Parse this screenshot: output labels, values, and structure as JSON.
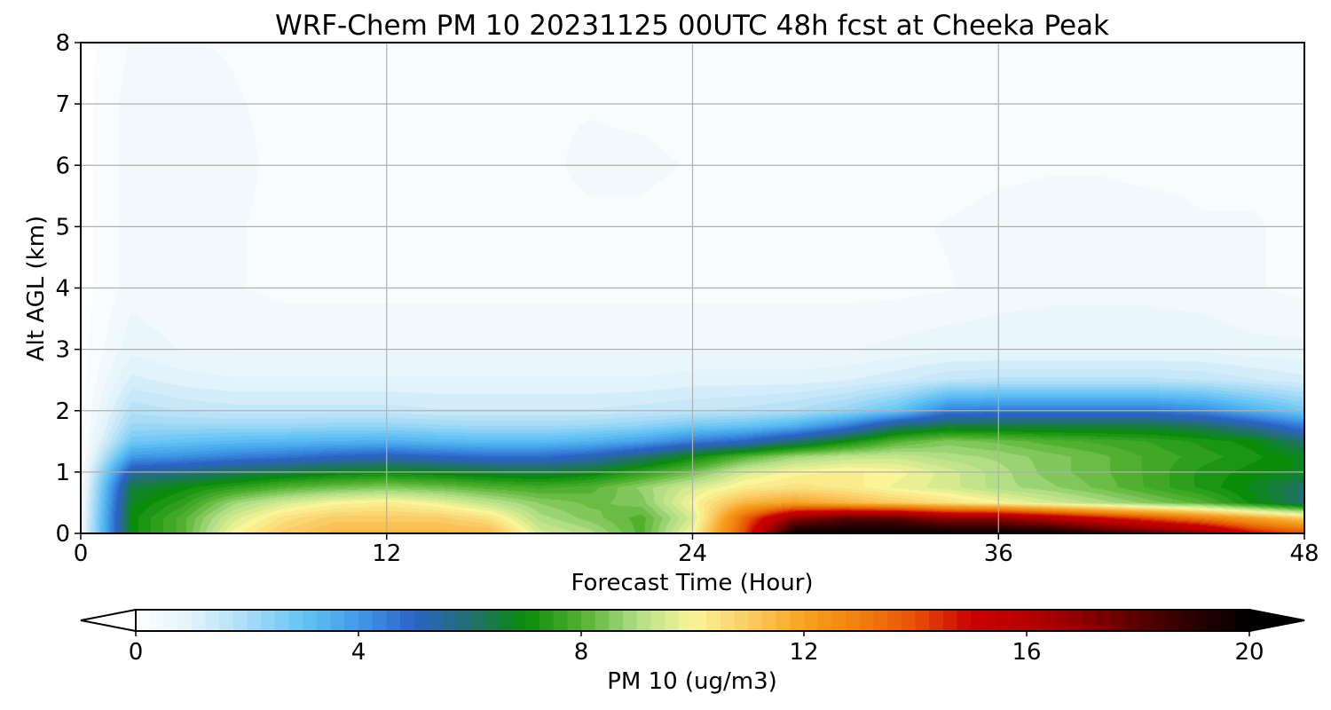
{
  "chart_data": {
    "type": "heatmap",
    "title": "WRF-Chem PM 10  20231125 00UTC 48h fcst at Cheeka Peak",
    "xlabel": "Forecast Time (Hour)",
    "ylabel": "Alt AGL (km)",
    "xlim": [
      0,
      48
    ],
    "ylim": [
      0,
      8
    ],
    "xticks": [
      "0",
      "12",
      "24",
      "36",
      "48"
    ],
    "yticks": [
      "0",
      "1",
      "2",
      "3",
      "4",
      "5",
      "6",
      "7",
      "8"
    ],
    "grid": true,
    "x_hours": [
      0,
      2,
      4,
      6,
      8,
      10,
      12,
      14,
      16,
      18,
      20,
      22,
      24,
      26,
      28,
      30,
      32,
      34,
      36,
      38,
      40,
      42,
      44,
      46,
      48
    ],
    "y_km": [
      0,
      0.25,
      0.5,
      0.75,
      1,
      1.25,
      1.5,
      1.75,
      2,
      2.5,
      3,
      4,
      5,
      6,
      7,
      8
    ],
    "values_by_height": [
      [
        0.5,
        7,
        8,
        10,
        11,
        11.5,
        11.5,
        11.5,
        11.5,
        9.5,
        9,
        8,
        10,
        14,
        20,
        20,
        20,
        20,
        20,
        20,
        19,
        18,
        17,
        15,
        14
      ],
      [
        0.4,
        7,
        8,
        9.5,
        10.5,
        11,
        11,
        11,
        10.5,
        9,
        8.5,
        8,
        9.5,
        13.5,
        17,
        18,
        18,
        17,
        17,
        16,
        15,
        14,
        13,
        12,
        11
      ],
      [
        0.3,
        6.8,
        7.5,
        8.8,
        9.5,
        10,
        10.2,
        9.8,
        9.2,
        8.6,
        8.3,
        8.5,
        10,
        11.5,
        12,
        11.5,
        11,
        10.5,
        10,
        9.5,
        9,
        8.5,
        8,
        7,
        6
      ],
      [
        0.2,
        6.5,
        7,
        7.5,
        8,
        8.3,
        8.5,
        8.3,
        8,
        7.8,
        8,
        8.7,
        9.5,
        10.2,
        10.5,
        10.3,
        9.8,
        9.5,
        9,
        8.7,
        8.3,
        7.8,
        7.3,
        6.8,
        6
      ],
      [
        0.1,
        5.5,
        5.8,
        6.2,
        6.5,
        6.8,
        7,
        6.8,
        6.6,
        6.5,
        6.8,
        7.5,
        8.3,
        9.5,
        10,
        10.2,
        10,
        9.5,
        9,
        8.5,
        8.2,
        7.8,
        7.3,
        7,
        6.8
      ],
      [
        0,
        4,
        4.2,
        4.5,
        4.7,
        5,
        5.2,
        5,
        4.8,
        4.8,
        5.2,
        6,
        7,
        8,
        8.8,
        9.2,
        9.3,
        9,
        8.8,
        8.5,
        8.2,
        7.8,
        7.5,
        7.2,
        6.8
      ],
      [
        0,
        2.8,
        3,
        3.2,
        3.3,
        3.4,
        3.5,
        3.3,
        3.2,
        3.2,
        3.4,
        3.8,
        4.5,
        5,
        6,
        7,
        8,
        8.5,
        8.3,
        8,
        7.8,
        7.6,
        7.3,
        7,
        6
      ],
      [
        0,
        2.2,
        2.2,
        2.2,
        2.2,
        2.3,
        2.3,
        2.2,
        2.1,
        2.1,
        2.2,
        2.4,
        2.8,
        3,
        3.5,
        4.5,
        6,
        6.5,
        6.5,
        6.5,
        6.5,
        6.5,
        6.2,
        5.5,
        4.5
      ],
      [
        0,
        1.8,
        1.6,
        1.5,
        1.5,
        1.5,
        1.5,
        1.4,
        1.4,
        1.4,
        1.4,
        1.5,
        1.6,
        1.7,
        1.9,
        2.3,
        3,
        4.5,
        4.6,
        4.6,
        4.6,
        4.6,
        4.3,
        3.5,
        2.8
      ],
      [
        0,
        1.2,
        1,
        0.9,
        0.9,
        0.9,
        0.9,
        0.9,
        0.9,
        0.9,
        0.9,
        0.9,
        1,
        1,
        1,
        1.1,
        1.3,
        1.6,
        1.7,
        1.7,
        1.7,
        1.7,
        1.6,
        1.4,
        1.2
      ],
      [
        0,
        0.8,
        0.6,
        0.6,
        0.6,
        0.6,
        0.6,
        0.6,
        0.6,
        0.6,
        0.6,
        0.6,
        0.6,
        0.6,
        0.6,
        0.6,
        0.7,
        0.8,
        0.8,
        0.8,
        0.8,
        0.8,
        0.8,
        0.7,
        0.7
      ],
      [
        0,
        0.5,
        0.4,
        0.4,
        0.3,
        0.3,
        0.3,
        0.3,
        0.3,
        0.3,
        0.3,
        0.3,
        0.3,
        0.3,
        0.3,
        0.3,
        0.3,
        0.35,
        0.5,
        0.55,
        0.55,
        0.55,
        0.5,
        0.4,
        0.3
      ],
      [
        0,
        0.5,
        0.5,
        0.4,
        0.3,
        0.2,
        0.2,
        0.2,
        0.2,
        0.3,
        0.3,
        0.3,
        0.2,
        0.2,
        0.2,
        0.2,
        0.3,
        0.4,
        0.5,
        0.5,
        0.5,
        0.5,
        0.4,
        0.4,
        0.3
      ],
      [
        0,
        0.5,
        0.55,
        0.45,
        0.3,
        0.2,
        0.2,
        0.2,
        0.2,
        0.3,
        0.45,
        0.45,
        0.35,
        0.2,
        0.2,
        0.2,
        0.2,
        0.2,
        0.3,
        0.35,
        0.35,
        0.3,
        0.3,
        0.3,
        0.3
      ],
      [
        0,
        0.5,
        0.5,
        0.4,
        0.3,
        0.2,
        0.2,
        0.25,
        0.3,
        0.35,
        0.35,
        0.3,
        0.25,
        0.2,
        0.2,
        0.2,
        0.2,
        0.2,
        0.25,
        0.3,
        0.3,
        0.3,
        0.3,
        0.3,
        0.3
      ],
      [
        0,
        0.4,
        0.4,
        0.35,
        0.25,
        0.2,
        0.2,
        0.3,
        0.35,
        0.35,
        0.3,
        0.25,
        0.2,
        0.2,
        0.2,
        0.2,
        0.2,
        0.2,
        0.2,
        0.2,
        0.2,
        0.2,
        0.2,
        0.2,
        0.2
      ]
    ],
    "colorbar": {
      "label": "PM 10  (ug/m3)",
      "range": [
        0,
        20
      ],
      "ticks": [
        "0",
        "4",
        "8",
        "12",
        "16",
        "20"
      ],
      "extend": "both",
      "stops": [
        {
          "v": 0,
          "c": "#ffffff"
        },
        {
          "v": 1,
          "c": "#e2f3fb"
        },
        {
          "v": 2,
          "c": "#a9dcf6"
        },
        {
          "v": 3,
          "c": "#63c4f5"
        },
        {
          "v": 4,
          "c": "#419ae8"
        },
        {
          "v": 5,
          "c": "#2b63c6"
        },
        {
          "v": 6,
          "c": "#227070"
        },
        {
          "v": 7,
          "c": "#0a8c0a"
        },
        {
          "v": 8,
          "c": "#52b030"
        },
        {
          "v": 9,
          "c": "#b2de86"
        },
        {
          "v": 10,
          "c": "#faf598"
        },
        {
          "v": 11,
          "c": "#fbcc66"
        },
        {
          "v": 12,
          "c": "#f7a220"
        },
        {
          "v": 13,
          "c": "#f08010"
        },
        {
          "v": 14,
          "c": "#e65008"
        },
        {
          "v": 15,
          "c": "#cc0000"
        },
        {
          "v": 16,
          "c": "#b80000"
        },
        {
          "v": 17,
          "c": "#8c0000"
        },
        {
          "v": 18,
          "c": "#5a0000"
        },
        {
          "v": 19,
          "c": "#2a0000"
        },
        {
          "v": 20,
          "c": "#000000"
        }
      ]
    },
    "colors": {
      "grid": "#b0b0b0",
      "axis": "#000000",
      "text": "#000000"
    }
  }
}
